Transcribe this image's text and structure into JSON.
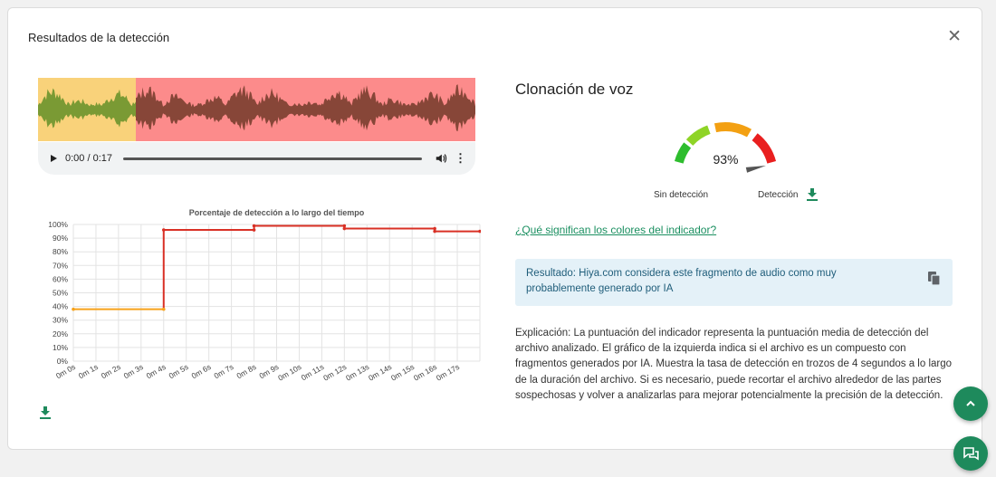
{
  "dialog": {
    "title": "Resultados de la detección",
    "close_icon": "close-icon"
  },
  "player": {
    "time": "0:00 / 0:17",
    "segments": [
      {
        "label": "start",
        "color": "#f9d27a"
      },
      {
        "label": "rest",
        "color": "#fc8b8b"
      }
    ]
  },
  "chart_data": {
    "type": "line",
    "title": "Porcentaje de detección a lo largo del tiempo",
    "x": [
      "0m 0s",
      "0m 1s",
      "0m 2s",
      "0m 3s",
      "0m 4s",
      "0m 5s",
      "0m 6s",
      "0m 7s",
      "0m 8s",
      "0m 9s",
      "0m 10s",
      "0m 11s",
      "0m 12s",
      "0m 13s",
      "0m 14s",
      "0m 15s",
      "0m 16s",
      "0m 17s"
    ],
    "yticks": [
      "0%",
      "10%",
      "20%",
      "30%",
      "40%",
      "50%",
      "60%",
      "70%",
      "80%",
      "90%",
      "100%"
    ],
    "ylim": [
      0,
      100
    ],
    "series": [
      {
        "color": "#f7a21b",
        "points": [
          [
            0,
            38
          ],
          [
            4,
            38
          ]
        ]
      },
      {
        "color": "#d93025",
        "points": [
          [
            4,
            96
          ],
          [
            8,
            96
          ],
          [
            8,
            99
          ],
          [
            12,
            99
          ],
          [
            12,
            97
          ],
          [
            16,
            97
          ],
          [
            16,
            95
          ],
          [
            18,
            95
          ]
        ]
      }
    ],
    "grid": true
  },
  "right": {
    "title": "Clonación de voz",
    "gauge": {
      "value": 93,
      "value_label": "93%",
      "left_label": "Sin detección",
      "right_label": "Detección",
      "colors": [
        "#2ebd2e",
        "#8ed426",
        "#f3a012",
        "#e91f1f"
      ]
    },
    "link": "¿Qué significan los colores del indicador?",
    "result": "Resultado: Hiya.com considera este fragmento de audio como muy probablemente generado por IA",
    "explanation": "Explicación: La puntuación del indicador representa la puntuación media de detección del archivo analizado. El gráfico de la izquierda indica si el archivo es un compuesto con fragmentos generados por IA. Muestra la tasa de detección en trozos de 4 segundos a lo largo de la duración del archivo. Si es necesario, puede recortar el archivo alrededor de las partes sospechosas y volver a analizarlas para mejorar potencialmente la precisión de la detección."
  },
  "icons": {
    "download": "download-icon",
    "copy": "copy-icon",
    "scroll_top": "chevron-up-icon",
    "chat": "chat-icon"
  }
}
